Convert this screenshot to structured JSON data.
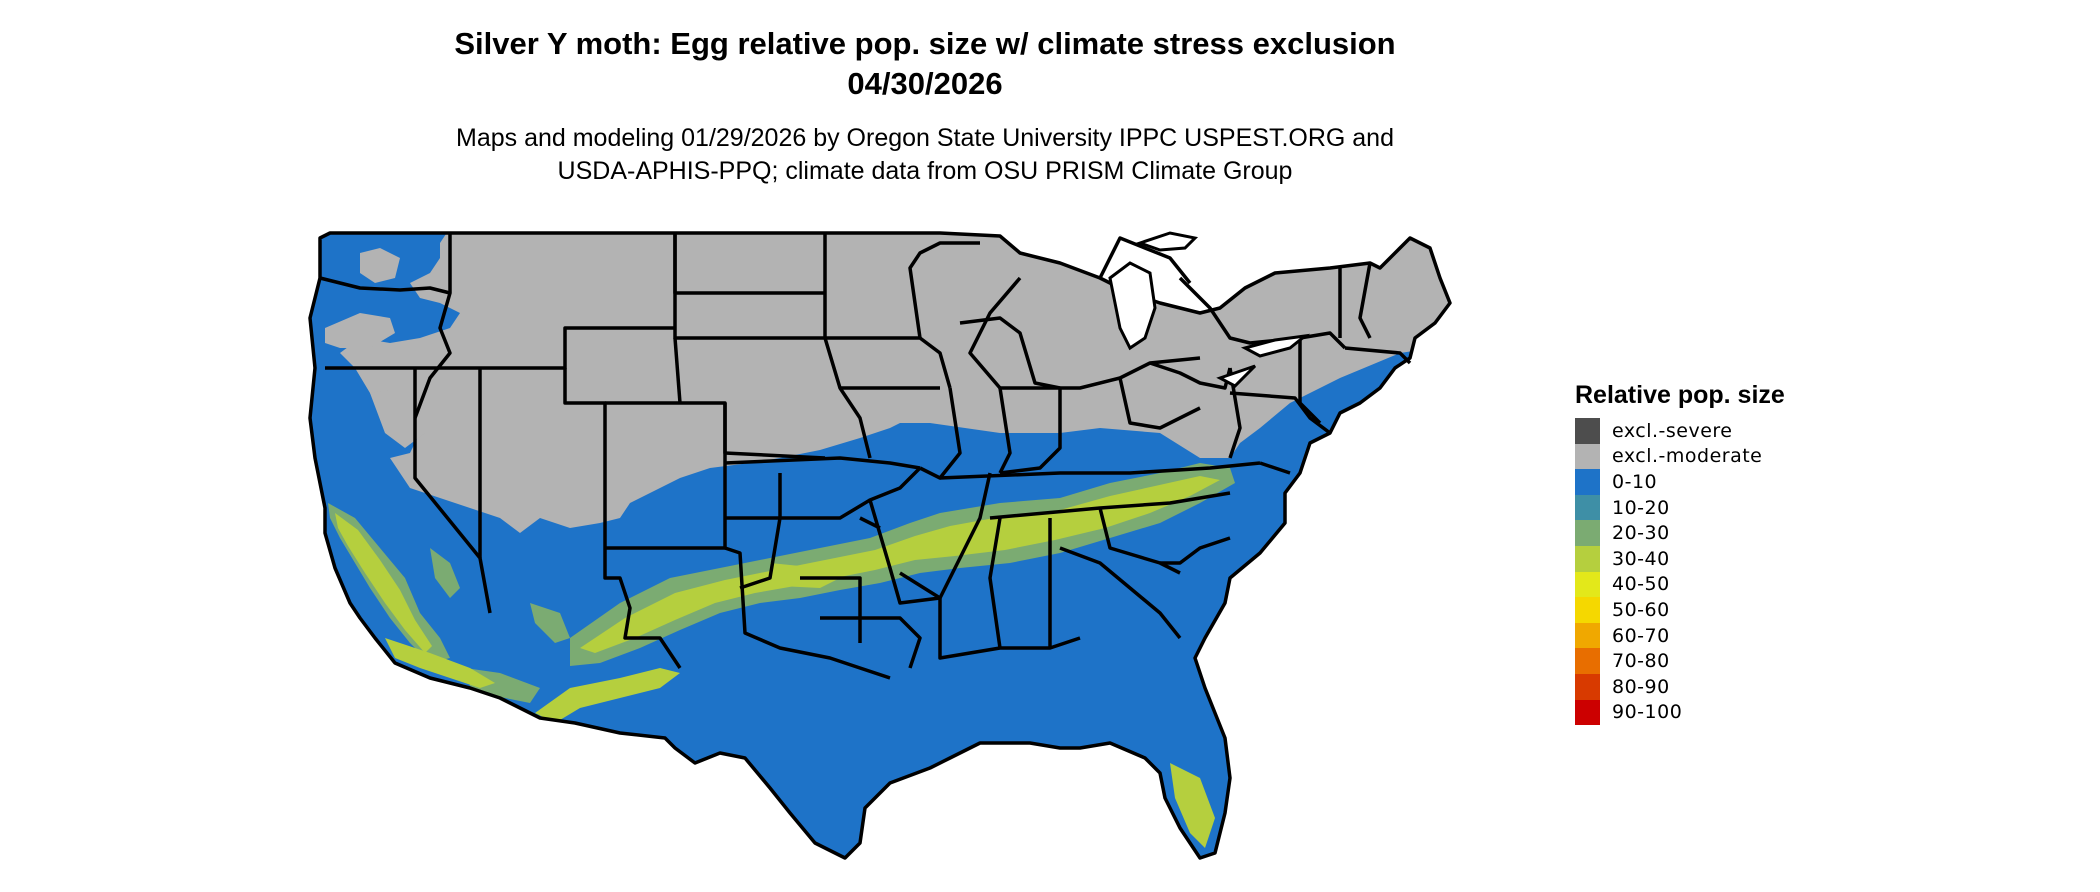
{
  "header": {
    "title_line1": "Silver Y moth: Egg relative pop. size w/ climate stress exclusion",
    "title_line2": "04/30/2026",
    "subtitle_line1": "Maps and modeling 01/29/2026 by Oregon State University IPPC USPEST.ORG and",
    "subtitle_line2": "USDA-APHIS-PPQ; climate data from OSU PRISM Climate Group"
  },
  "legend": {
    "title": "Relative pop. size",
    "items": [
      {
        "label": "excl.-severe",
        "color": "#4d4d4d"
      },
      {
        "label": "excl.-moderate",
        "color": "#b3b3b3"
      },
      {
        "label": "0-10",
        "color": "#1e73c8"
      },
      {
        "label": "10-20",
        "color": "#3e8fa6"
      },
      {
        "label": "20-30",
        "color": "#7bab72"
      },
      {
        "label": "30-40",
        "color": "#b5cf3e"
      },
      {
        "label": "40-50",
        "color": "#e3e81a"
      },
      {
        "label": "50-60",
        "color": "#f5d800"
      },
      {
        "label": "60-70",
        "color": "#f0a800"
      },
      {
        "label": "70-80",
        "color": "#e86e00"
      },
      {
        "label": "80-90",
        "color": "#d83a00"
      },
      {
        "label": "90-100",
        "color": "#cc0000"
      }
    ]
  },
  "map": {
    "region": "Contiguous United States",
    "colors": {
      "excluded_moderate": "#b3b3b3",
      "low": "#1e73c8",
      "band": "#b5cf3e",
      "band_edge": "#7bab72",
      "border": "#000000"
    }
  }
}
